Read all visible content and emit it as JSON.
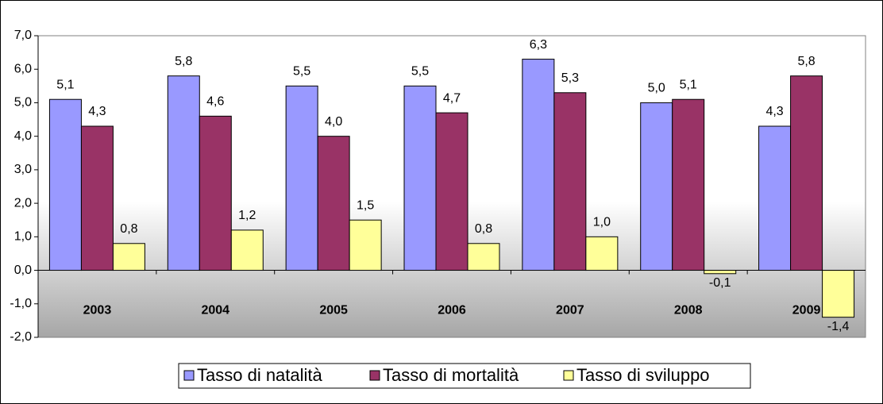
{
  "chart_data": {
    "type": "bar",
    "categories": [
      "2003",
      "2004",
      "2005",
      "2006",
      "2007",
      "2008",
      "2009"
    ],
    "series": [
      {
        "name": "Tasso di natalità",
        "color": "#9999ff",
        "values": [
          5.1,
          5.8,
          5.5,
          5.5,
          6.3,
          5.0,
          4.3
        ],
        "value_labels": [
          "5,1",
          "5,8",
          "5,5",
          "5,5",
          "6,3",
          "5,0",
          "4,3"
        ]
      },
      {
        "name": "Tasso di mortalità",
        "color": "#993366",
        "values": [
          4.3,
          4.6,
          4.0,
          4.7,
          5.3,
          5.1,
          5.8
        ],
        "value_labels": [
          "4,3",
          "4,6",
          "4,0",
          "4,7",
          "5,3",
          "5,1",
          "5,8"
        ]
      },
      {
        "name": "Tasso di sviluppo",
        "color": "#ffff99",
        "values": [
          0.8,
          1.2,
          1.5,
          0.8,
          1.0,
          -0.1,
          -1.4
        ],
        "value_labels": [
          "0,8",
          "1,2",
          "1,5",
          "0,8",
          "1,0",
          "-0,1",
          "-1,4"
        ]
      }
    ],
    "ylim": [
      -2,
      7
    ],
    "yticks": [
      {
        "value": -2,
        "label": "-2,0"
      },
      {
        "value": -1,
        "label": "-1,0"
      },
      {
        "value": 0,
        "label": "0,0"
      },
      {
        "value": 1,
        "label": "1,0"
      },
      {
        "value": 2,
        "label": "2,0"
      },
      {
        "value": 3,
        "label": "3,0"
      },
      {
        "value": 4,
        "label": "4,0"
      },
      {
        "value": 5,
        "label": "5,0"
      },
      {
        "value": 6,
        "label": "6,0"
      },
      {
        "value": 7,
        "label": "7,0"
      }
    ],
    "legend": "bottom"
  }
}
